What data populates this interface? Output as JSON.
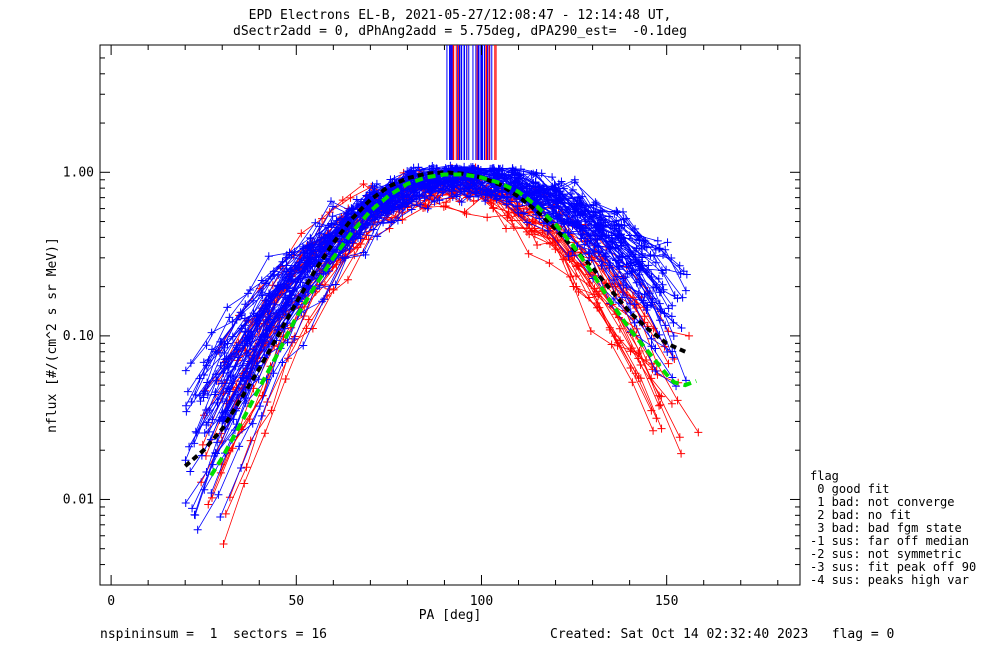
{
  "title": {
    "line1": "EPD Electrons EL-B, 2021-05-27/12:08:47 - 12:14:48 UT,",
    "line2": "dSectr2add = 0, dPhAng2add = 5.75deg, dPA290_est=  -0.1deg"
  },
  "legend": {
    "title": "flag",
    "items": [
      " 0 good fit",
      " 1 bad: not converge",
      " 2 bad: no fit",
      " 3 bad: bad fgm state",
      "-1 sus: far off median",
      "-2 sus: not symmetric",
      "-3 sus: fit peak off 90",
      "-4 sus: peaks high var"
    ]
  },
  "footer": {
    "left": "nspininsum =  1  sectors = 16",
    "right": "Created: Sat Oct 14 02:32:40 2023   flag = 0"
  },
  "colors": {
    "blue_series": "#0000ff",
    "red_series": "#ff0000",
    "fit_green": "#00dd00",
    "fit_black": "#000000"
  },
  "chart_data": {
    "type": "line",
    "xlabel": "PA [deg]",
    "ylabel": "nflux [#/(cm^2 s sr MeV)]",
    "xlim": [
      -3,
      186
    ],
    "ylim": [
      0.003,
      6.0
    ],
    "yscale": "log",
    "xticks": [
      0,
      50,
      100,
      150
    ],
    "yticks": [
      0.01,
      0.1,
      1.0
    ],
    "ytick_labels": [
      "0.01",
      "0.10",
      "1.00"
    ],
    "marker": "+",
    "series": [
      {
        "color": "blue",
        "description_count": 85,
        "envelope": {
          "peak_pa": 95,
          "peak_flux": 0.95,
          "pa_range": [
            20,
            156
          ]
        }
      },
      {
        "color": "red",
        "description_count": 25,
        "envelope": {
          "peak_pa": 90,
          "peak_flux": 0.9,
          "pa_range": [
            25,
            162
          ]
        }
      }
    ],
    "fit_green": {
      "x": [
        27,
        30,
        35,
        40,
        45,
        50,
        55,
        60,
        65,
        70,
        75,
        80,
        85,
        90,
        95,
        100,
        105,
        110,
        115,
        120,
        125,
        130,
        135,
        140,
        145,
        150,
        152,
        155,
        158
      ],
      "y": [
        0.014,
        0.018,
        0.029,
        0.048,
        0.078,
        0.13,
        0.2,
        0.3,
        0.43,
        0.58,
        0.72,
        0.85,
        0.93,
        0.97,
        0.97,
        0.93,
        0.86,
        0.76,
        0.62,
        0.48,
        0.35,
        0.24,
        0.16,
        0.11,
        0.08,
        0.058,
        0.052,
        0.05,
        0.053
      ]
    },
    "fit_black": {
      "x": [
        20,
        25,
        30,
        35,
        40,
        45,
        50,
        55,
        60,
        65,
        70,
        75,
        80,
        85,
        90,
        95,
        100,
        105,
        110,
        115,
        120,
        125,
        130,
        135,
        140,
        145,
        150,
        155
      ],
      "y": [
        0.016,
        0.02,
        0.027,
        0.041,
        0.063,
        0.1,
        0.16,
        0.25,
        0.37,
        0.52,
        0.68,
        0.82,
        0.92,
        0.98,
        1.0,
        0.98,
        0.93,
        0.84,
        0.71,
        0.58,
        0.45,
        0.34,
        0.26,
        0.19,
        0.14,
        0.11,
        0.09,
        0.08
      ]
    }
  }
}
